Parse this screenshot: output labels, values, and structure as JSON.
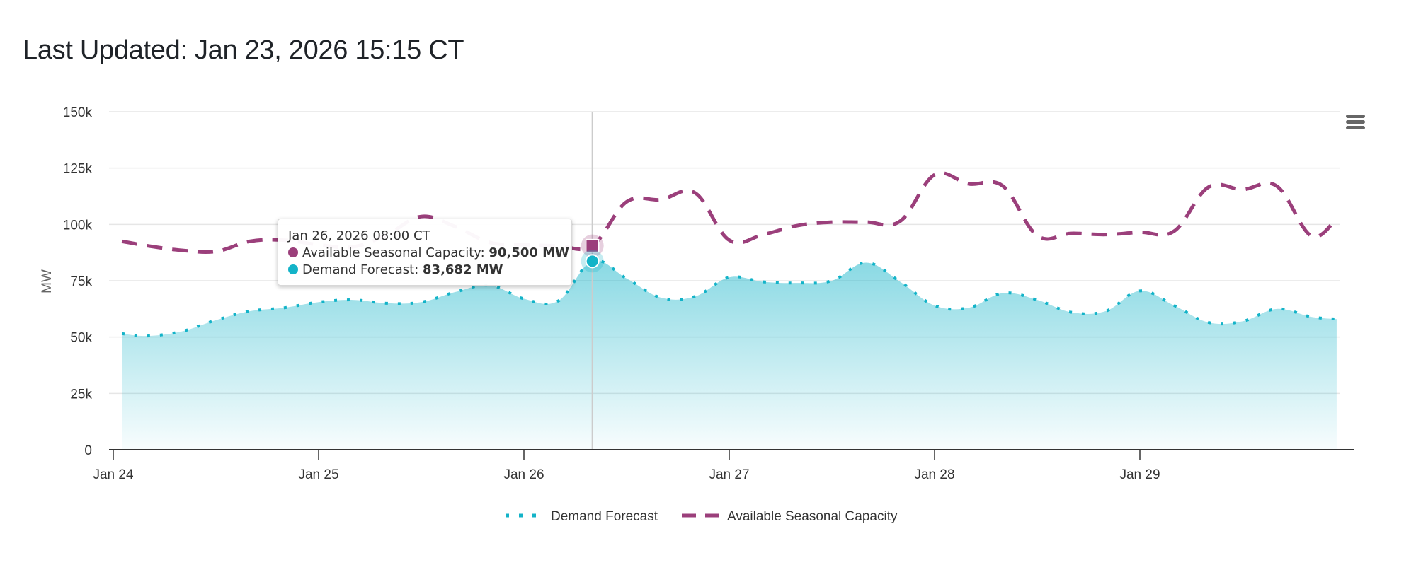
{
  "header": {
    "title": "Last Updated: Jan 23, 2026 15:15 CT"
  },
  "menu": {
    "icon": "hamburger-menu-icon"
  },
  "tooltip": {
    "date": "Jan 26, 2026 08:00 CT",
    "rows": [
      {
        "label": "Available Seasonal Capacity: ",
        "value": "90,500 MW",
        "color": "#9b3f7b"
      },
      {
        "label": "Demand Forecast: ",
        "value": "83,682 MW",
        "color": "#13b3c8"
      }
    ]
  },
  "chart_data": {
    "type": "area",
    "title": "",
    "xlabel": "",
    "ylabel": "MW",
    "ylim": [
      0,
      150000
    ],
    "yticks": [
      0,
      25000,
      50000,
      75000,
      100000,
      125000,
      150000
    ],
    "ytick_labels": [
      "0",
      "25k",
      "50k",
      "75k",
      "100k",
      "125k",
      "150k"
    ],
    "xlim_hours_from_jan24": [
      0,
      147
    ],
    "xticks_hours": [
      0,
      24,
      48,
      72,
      96,
      120
    ],
    "xtick_labels": [
      "Jan 24",
      "Jan 25",
      "Jan 26",
      "Jan 27",
      "Jan 28",
      "Jan 29"
    ],
    "grid": true,
    "legend": "bottom-center",
    "hover_hour": 56,
    "x_hours": [
      1,
      4,
      8,
      12,
      16,
      20,
      24,
      28,
      32,
      36,
      40,
      44,
      48,
      52,
      56,
      60,
      64,
      68,
      72,
      76,
      80,
      84,
      88,
      92,
      96,
      100,
      104,
      108,
      112,
      116,
      120,
      124,
      128,
      132,
      136,
      140,
      143
    ],
    "series": [
      {
        "name": "Demand Forecast",
        "type": "area",
        "style": "dotted",
        "color": "#13b3c8",
        "values": [
          51500,
          50500,
          52500,
          57500,
          61500,
          63000,
          65500,
          66500,
          65000,
          65500,
          70000,
          73000,
          67000,
          66000,
          83682,
          76000,
          67500,
          68000,
          76500,
          74500,
          74000,
          75000,
          83000,
          74500,
          64000,
          63000,
          69500,
          66500,
          61000,
          61500,
          70500,
          64000,
          56500,
          57000,
          62500,
          59000,
          58000
        ]
      },
      {
        "name": "Available Seasonal Capacity",
        "type": "line",
        "style": "dashed",
        "color": "#9b3f7b",
        "values": [
          92500,
          90500,
          88500,
          88000,
          92500,
          93000,
          91000,
          90000,
          95500,
          103500,
          99000,
          92000,
          91000,
          90500,
          90500,
          110000,
          111000,
          114000,
          93000,
          95500,
          99500,
          101000,
          101000,
          101500,
          122000,
          118000,
          117000,
          95000,
          96000,
          95500,
          96500,
          97000,
          116500,
          115500,
          117000,
          95000,
          102500
        ]
      }
    ]
  }
}
